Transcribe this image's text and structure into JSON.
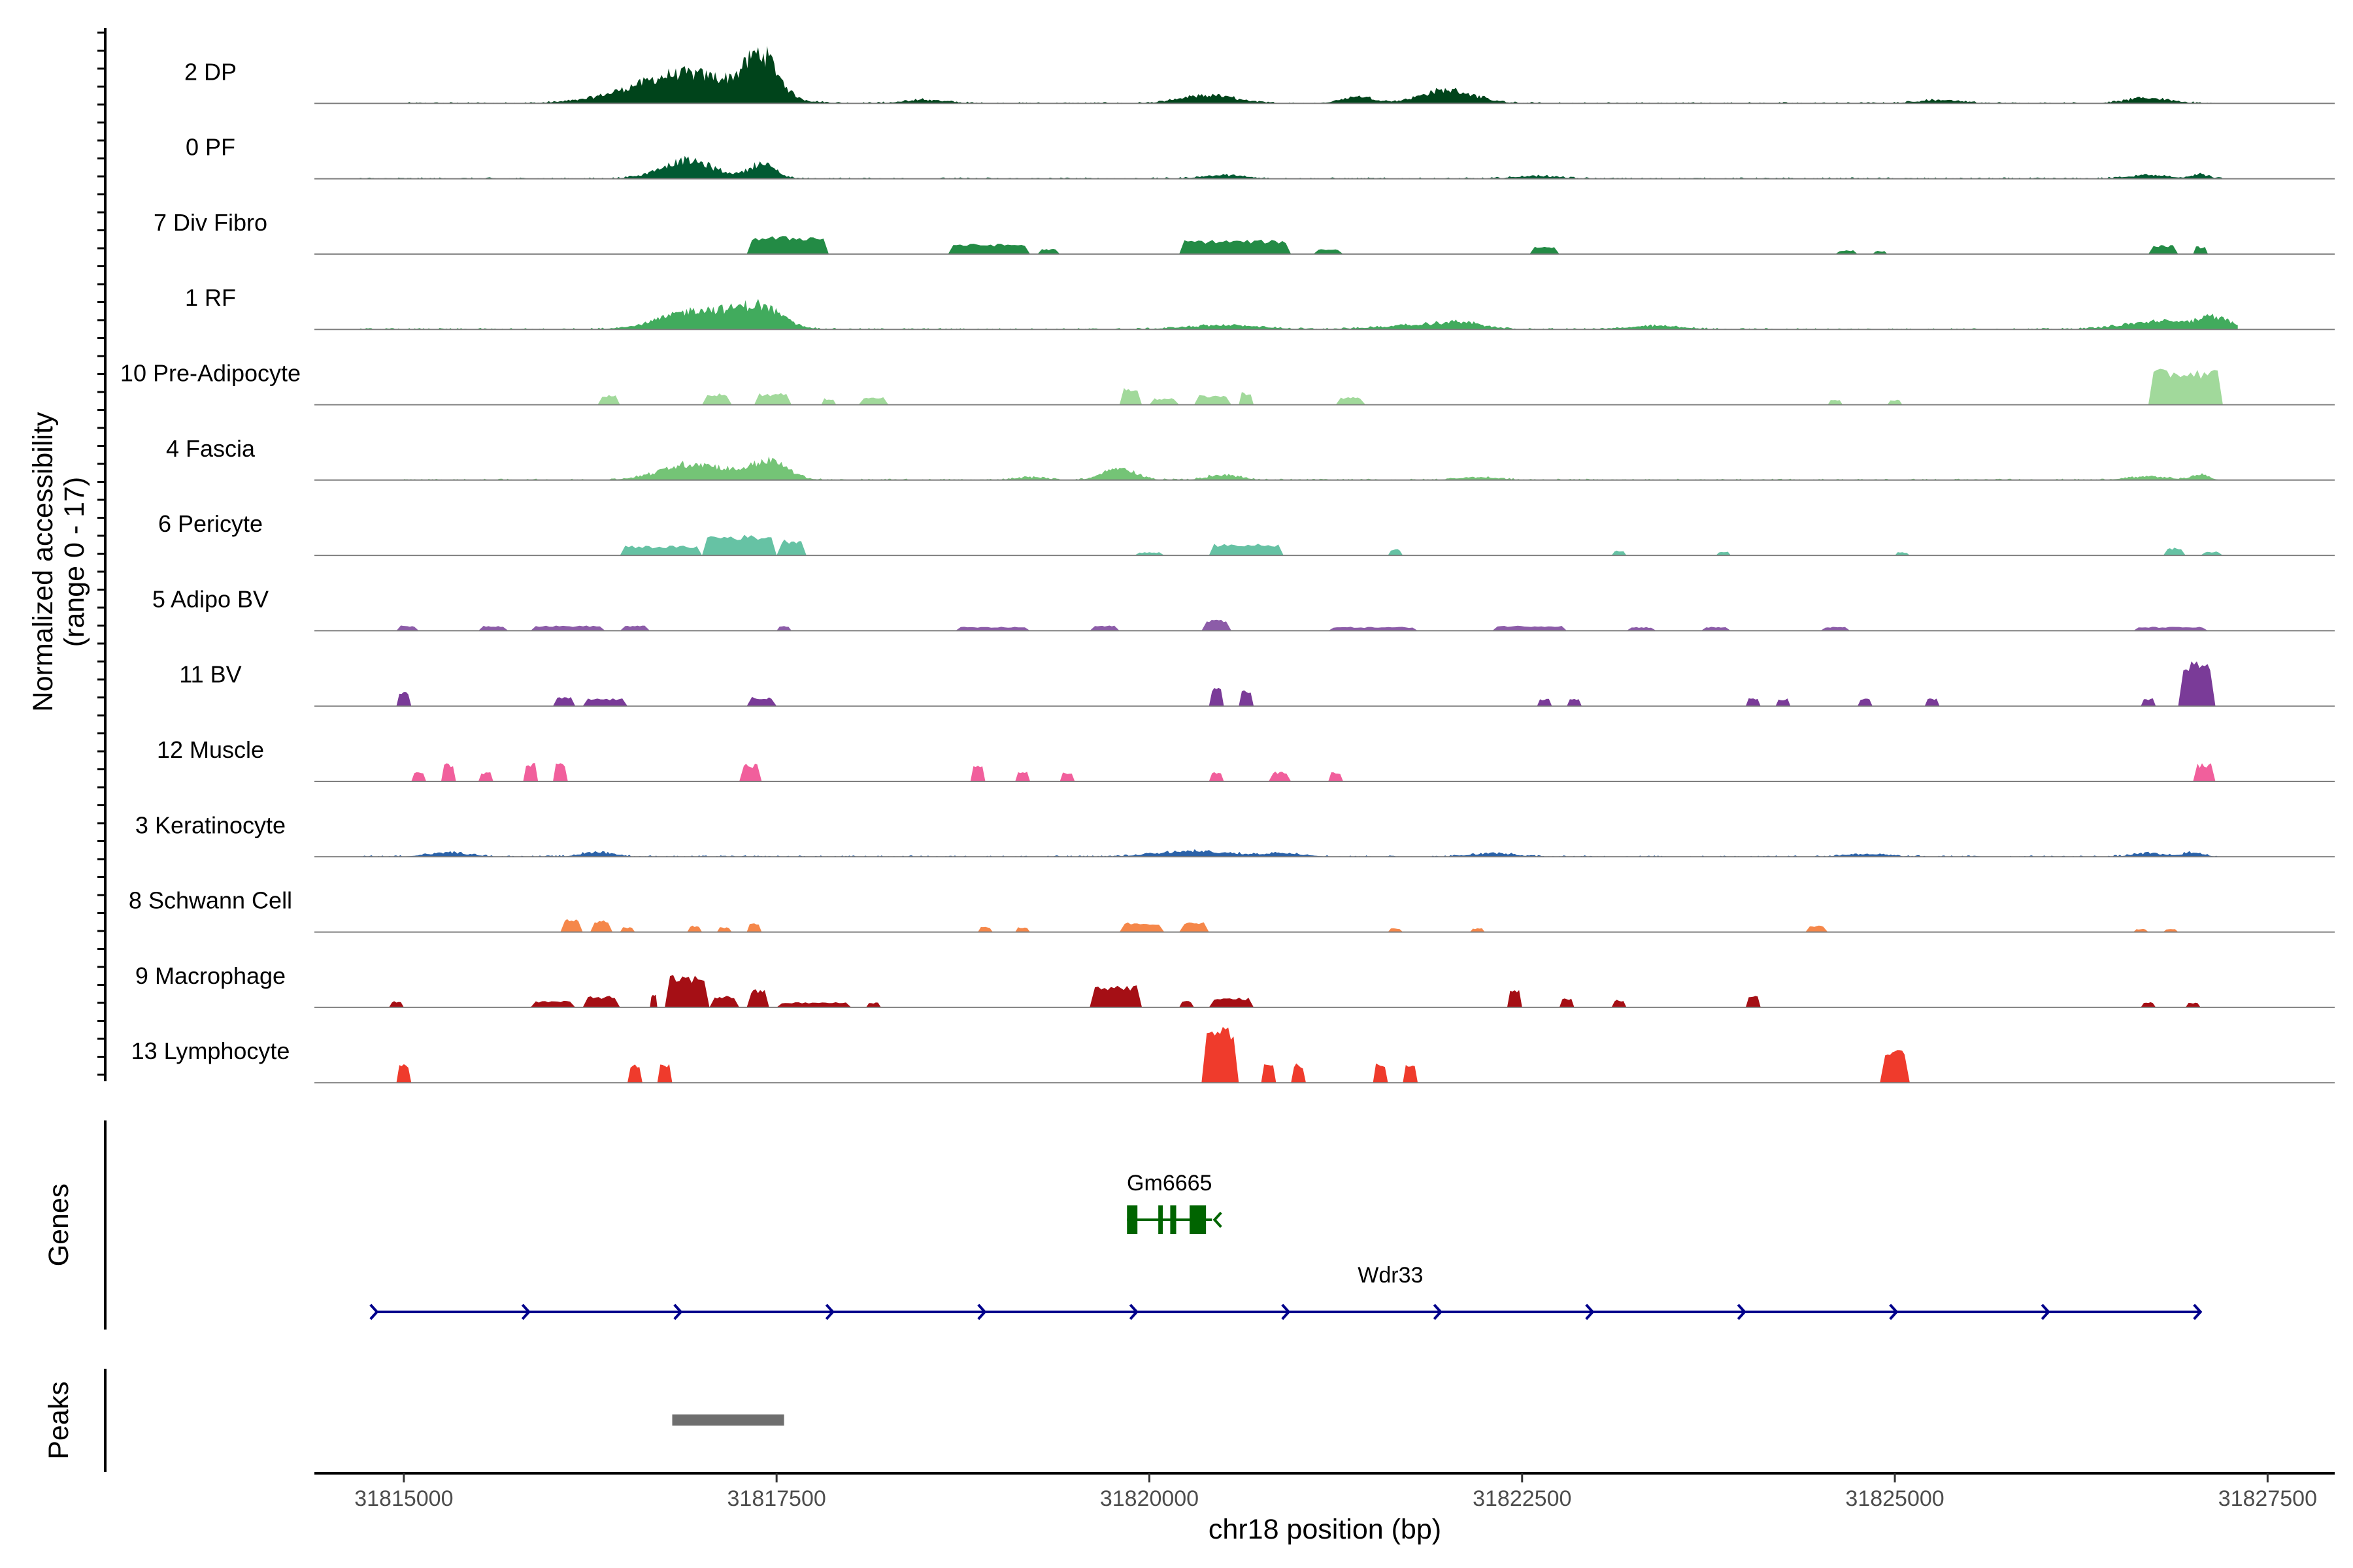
{
  "chart_data": {
    "type": "area",
    "title": "",
    "ylabel_lines": [
      "Normalized accessibility",
      "(range 0 - 17)"
    ],
    "ylim": [
      0,
      17
    ],
    "xlabel": "chr18 position (bp)",
    "xlim": [
      31814400,
      31827950
    ],
    "x_ticks": [
      31815000,
      31817500,
      31820000,
      31822500,
      31825000,
      31827500
    ],
    "x_tick_labels": [
      "31815000",
      "31817500",
      "31820000",
      "31822500",
      "31825000",
      "31827500"
    ],
    "section_labels": {
      "genes": "Genes",
      "peaks": "Peaks"
    },
    "series": [
      {
        "name": "2 DP",
        "color": "#00441b",
        "mode": "wide",
        "signal_range": [
          31815000,
          31827150
        ],
        "peaks": [
          [
            31816900,
            1000,
            0.45
          ],
          [
            31817400,
            300,
            0.6
          ],
          [
            31822000,
            500,
            0.2
          ],
          [
            31820400,
            500,
            0.12
          ],
          [
            31818500,
            400,
            0.05
          ],
          [
            31821400,
            300,
            0.1
          ],
          [
            31826700,
            400,
            0.08
          ],
          [
            31825300,
            400,
            0.05
          ]
        ]
      },
      {
        "name": "0 PF",
        "color": "#005a32",
        "mode": "wide",
        "signal_range": [
          31814700,
          31827200
        ],
        "peaks": [
          [
            31816900,
            500,
            0.27
          ],
          [
            31817400,
            250,
            0.22
          ],
          [
            31820500,
            400,
            0.05
          ],
          [
            31822600,
            400,
            0.04
          ],
          [
            31826700,
            400,
            0.05
          ],
          [
            31827050,
            150,
            0.06
          ]
        ]
      },
      {
        "name": "7 Div Fibro",
        "color": "#238b45",
        "mode": "blocks",
        "blocks": [
          [
            31817300,
            31817850,
            0.28
          ],
          [
            31818650,
            31819200,
            0.16
          ],
          [
            31819250,
            31819400,
            0.08
          ],
          [
            31820200,
            31820950,
            0.22
          ],
          [
            31821100,
            31821300,
            0.08
          ],
          [
            31822550,
            31822750,
            0.12
          ],
          [
            31824600,
            31824750,
            0.06
          ],
          [
            31824850,
            31824950,
            0.05
          ],
          [
            31826700,
            31826900,
            0.14
          ],
          [
            31827000,
            31827100,
            0.12
          ]
        ]
      },
      {
        "name": "1 RF",
        "color": "#41ab5d",
        "mode": "wide",
        "signal_range": [
          31814700,
          31827300
        ],
        "peaks": [
          [
            31817000,
            700,
            0.3
          ],
          [
            31817400,
            400,
            0.28
          ],
          [
            31820500,
            700,
            0.06
          ],
          [
            31821800,
            700,
            0.06
          ],
          [
            31822100,
            400,
            0.08
          ],
          [
            31823400,
            500,
            0.05
          ],
          [
            31826800,
            700,
            0.12
          ],
          [
            31827150,
            300,
            0.14
          ]
        ]
      },
      {
        "name": "10 Pre-Adipocyte",
        "color": "#a1d99b",
        "mode": "blocks",
        "blocks": [
          [
            31816300,
            31816450,
            0.15
          ],
          [
            31817000,
            31817200,
            0.18
          ],
          [
            31817350,
            31817600,
            0.18
          ],
          [
            31817800,
            31817900,
            0.1
          ],
          [
            31818050,
            31818250,
            0.12
          ],
          [
            31819800,
            31819950,
            0.28
          ],
          [
            31820000,
            31820200,
            0.1
          ],
          [
            31820300,
            31820550,
            0.15
          ],
          [
            31820600,
            31820700,
            0.2
          ],
          [
            31821250,
            31821450,
            0.12
          ],
          [
            31824550,
            31824650,
            0.08
          ],
          [
            31824950,
            31825050,
            0.08
          ],
          [
            31826700,
            31827200,
            0.55
          ]
        ]
      },
      {
        "name": "4 Fascia",
        "color": "#74c476",
        "mode": "wide",
        "signal_range": [
          31815000,
          31827200
        ],
        "peaks": [
          [
            31816950,
            600,
            0.25
          ],
          [
            31817450,
            350,
            0.28
          ],
          [
            31819800,
            300,
            0.18
          ],
          [
            31820500,
            300,
            0.08
          ],
          [
            31819200,
            300,
            0.04
          ],
          [
            31826700,
            400,
            0.05
          ],
          [
            31827050,
            150,
            0.08
          ],
          [
            31822200,
            400,
            0.04
          ]
        ]
      },
      {
        "name": "6 Pericyte",
        "color": "#66c2a4",
        "mode": "blocks",
        "blocks": [
          [
            31816450,
            31817000,
            0.15
          ],
          [
            31817000,
            31817500,
            0.32
          ],
          [
            31817500,
            31817700,
            0.25
          ],
          [
            31819900,
            31820100,
            0.05
          ],
          [
            31820400,
            31820900,
            0.18
          ],
          [
            31821600,
            31821700,
            0.1
          ],
          [
            31823100,
            31823200,
            0.08
          ],
          [
            31823800,
            31823900,
            0.06
          ],
          [
            31825000,
            31825100,
            0.05
          ],
          [
            31826800,
            31826950,
            0.12
          ],
          [
            31827050,
            31827200,
            0.06
          ]
        ]
      },
      {
        "name": "5 Adipo BV",
        "color": "#8c5ca8",
        "mode": "blocks",
        "blocks": [
          [
            31814950,
            31815100,
            0.08
          ],
          [
            31815500,
            31815700,
            0.08
          ],
          [
            31815850,
            31816350,
            0.08
          ],
          [
            31816450,
            31816650,
            0.08
          ],
          [
            31817500,
            31817600,
            0.08
          ],
          [
            31818700,
            31819200,
            0.06
          ],
          [
            31819600,
            31819800,
            0.08
          ],
          [
            31820350,
            31820550,
            0.18
          ],
          [
            31821200,
            31821800,
            0.06
          ],
          [
            31822300,
            31822800,
            0.08
          ],
          [
            31823200,
            31823400,
            0.06
          ],
          [
            31823700,
            31823900,
            0.06
          ],
          [
            31824500,
            31824700,
            0.06
          ],
          [
            31826600,
            31827100,
            0.06
          ]
        ]
      },
      {
        "name": "11 BV",
        "color": "#7a3b98",
        "mode": "blocks",
        "blocks": [
          [
            31814950,
            31815050,
            0.22
          ],
          [
            31816000,
            31816150,
            0.14
          ],
          [
            31816200,
            31816500,
            0.12
          ],
          [
            31817300,
            31817500,
            0.14
          ],
          [
            31820400,
            31820500,
            0.28
          ],
          [
            31820600,
            31820700,
            0.25
          ],
          [
            31822600,
            31822700,
            0.12
          ],
          [
            31822800,
            31822900,
            0.12
          ],
          [
            31824000,
            31824100,
            0.12
          ],
          [
            31824200,
            31824300,
            0.12
          ],
          [
            31824750,
            31824850,
            0.12
          ],
          [
            31825200,
            31825300,
            0.12
          ],
          [
            31826650,
            31826750,
            0.12
          ],
          [
            31826900,
            31827150,
            0.7
          ]
        ]
      },
      {
        "name": "12 Muscle",
        "color": "#f15f9c",
        "mode": "blocks",
        "blocks": [
          [
            31815050,
            31815150,
            0.15
          ],
          [
            31815250,
            31815350,
            0.28
          ],
          [
            31815500,
            31815600,
            0.15
          ],
          [
            31815800,
            31815900,
            0.28
          ],
          [
            31816000,
            31816100,
            0.28
          ],
          [
            31817250,
            31817400,
            0.28
          ],
          [
            31818800,
            31818900,
            0.28
          ],
          [
            31819100,
            31819200,
            0.15
          ],
          [
            31819400,
            31819500,
            0.15
          ],
          [
            31820400,
            31820500,
            0.15
          ],
          [
            31820800,
            31820950,
            0.15
          ],
          [
            31821200,
            31821300,
            0.15
          ],
          [
            31827000,
            31827150,
            0.28
          ]
        ]
      },
      {
        "name": "3 Keratinocyte",
        "color": "#2b62a8",
        "mode": "wide",
        "signal_range": [
          31814700,
          31827200
        ],
        "peaks": [
          [
            31815300,
            400,
            0.06
          ],
          [
            31816300,
            300,
            0.07
          ],
          [
            31820300,
            700,
            0.08
          ],
          [
            31820900,
            400,
            0.05
          ],
          [
            31822300,
            400,
            0.05
          ],
          [
            31824800,
            400,
            0.04
          ],
          [
            31826700,
            300,
            0.05
          ],
          [
            31827000,
            200,
            0.06
          ]
        ]
      },
      {
        "name": "8 Schwann Cell",
        "color": "#f5874a",
        "mode": "blocks",
        "blocks": [
          [
            31816050,
            31816200,
            0.2
          ],
          [
            31816250,
            31816400,
            0.18
          ],
          [
            31816450,
            31816550,
            0.08
          ],
          [
            31816900,
            31817000,
            0.1
          ],
          [
            31817100,
            31817200,
            0.08
          ],
          [
            31817300,
            31817400,
            0.15
          ],
          [
            31818850,
            31818950,
            0.08
          ],
          [
            31819100,
            31819200,
            0.08
          ],
          [
            31819800,
            31820100,
            0.15
          ],
          [
            31820200,
            31820400,
            0.15
          ],
          [
            31821600,
            31821700,
            0.06
          ],
          [
            31822150,
            31822250,
            0.06
          ],
          [
            31824400,
            31824550,
            0.1
          ],
          [
            31826600,
            31826700,
            0.05
          ],
          [
            31826800,
            31826900,
            0.05
          ]
        ]
      },
      {
        "name": "9 Macrophage",
        "color": "#a50f15",
        "mode": "blocks",
        "blocks": [
          [
            31814900,
            31815000,
            0.1
          ],
          [
            31815850,
            31816150,
            0.1
          ],
          [
            31816200,
            31816450,
            0.18
          ],
          [
            31816650,
            31816700,
            0.2
          ],
          [
            31816750,
            31817050,
            0.5
          ],
          [
            31817050,
            31817250,
            0.18
          ],
          [
            31817300,
            31817450,
            0.28
          ],
          [
            31817500,
            31818000,
            0.08
          ],
          [
            31818100,
            31818200,
            0.08
          ],
          [
            31819600,
            31819950,
            0.35
          ],
          [
            31820200,
            31820300,
            0.1
          ],
          [
            31820400,
            31820700,
            0.15
          ],
          [
            31822400,
            31822500,
            0.28
          ],
          [
            31822750,
            31822850,
            0.15
          ],
          [
            31823100,
            31823200,
            0.12
          ],
          [
            31824000,
            31824100,
            0.18
          ],
          [
            31826650,
            31826750,
            0.08
          ],
          [
            31826950,
            31827050,
            0.08
          ]
        ]
      },
      {
        "name": "13 Lymphocyte",
        "color": "#ef3b2c",
        "mode": "blocks",
        "blocks": [
          [
            31814950,
            31815050,
            0.3
          ],
          [
            31816500,
            31816600,
            0.3
          ],
          [
            31816700,
            31816800,
            0.3
          ],
          [
            31820350,
            31820600,
            0.9
          ],
          [
            31820750,
            31820850,
            0.3
          ],
          [
            31820950,
            31821050,
            0.3
          ],
          [
            31821500,
            31821600,
            0.3
          ],
          [
            31821700,
            31821800,
            0.3
          ],
          [
            31824900,
            31825100,
            0.5
          ]
        ]
      }
    ],
    "genes": [
      {
        "name": "Gm6665",
        "start": 31819850,
        "end": 31820420,
        "strand": "-",
        "color": "#006400",
        "exons": [
          [
            31819850,
            31819920
          ],
          [
            31820060,
            31820090
          ],
          [
            31820140,
            31820180
          ],
          [
            31820270,
            31820380
          ]
        ]
      },
      {
        "name": "Wdr33",
        "start": 31814820,
        "end": 31827050,
        "strand": "+",
        "color": "#00008b",
        "exons": []
      }
    ],
    "peaks_track": [
      {
        "start": 31816800,
        "end": 31817550,
        "color": "#6e6e6e"
      }
    ]
  }
}
